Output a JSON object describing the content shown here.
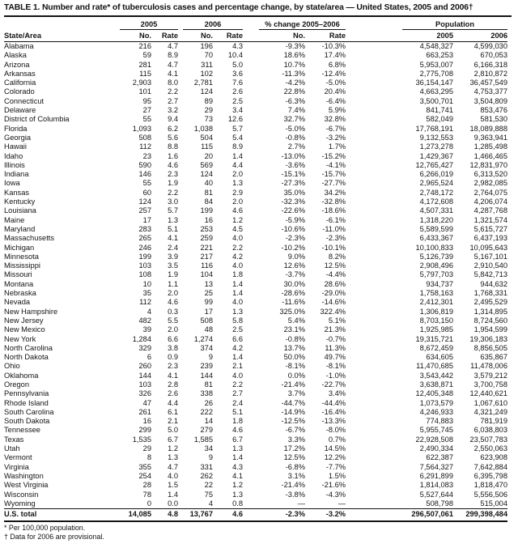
{
  "title": "TABLE 1. Number and rate* of tuberculosis cases and percentage change, by state/area — United States, 2005 and 2006†",
  "table": {
    "state_col_header": "State/Area",
    "groups": [
      "2005",
      "2006",
      "% change 2005–2006",
      "Population"
    ],
    "subheaders": [
      "No.",
      "Rate",
      "No.",
      "Rate",
      "No.",
      "Rate",
      "2005",
      "2006"
    ],
    "rows": [
      [
        "Alabama",
        "216",
        "4.7",
        "196",
        "4.3",
        "-9.3%",
        "-10.3%",
        "4,548,327",
        "4,599,030"
      ],
      [
        "Alaska",
        "59",
        "8.9",
        "70",
        "10.4",
        "18.6%",
        "17.4%",
        "663,253",
        "670,053"
      ],
      [
        "Arizona",
        "281",
        "4.7",
        "311",
        "5.0",
        "10.7%",
        "6.8%",
        "5,953,007",
        "6,166,318"
      ],
      [
        "Arkansas",
        "115",
        "4.1",
        "102",
        "3.6",
        "-11.3%",
        "-12.4%",
        "2,775,708",
        "2,810,872"
      ],
      [
        "California",
        "2,903",
        "8.0",
        "2,781",
        "7.6",
        "-4.2%",
        "-5.0%",
        "36,154,147",
        "36,457,549"
      ],
      [
        "Colorado",
        "101",
        "2.2",
        "124",
        "2.6",
        "22.8%",
        "20.4%",
        "4,663,295",
        "4,753,377"
      ],
      [
        "Connecticut",
        "95",
        "2.7",
        "89",
        "2.5",
        "-6.3%",
        "-6.4%",
        "3,500,701",
        "3,504,809"
      ],
      [
        "Delaware",
        "27",
        "3.2",
        "29",
        "3.4",
        "7.4%",
        "5.9%",
        "841,741",
        "853,476"
      ],
      [
        "District of Columbia",
        "55",
        "9.4",
        "73",
        "12.6",
        "32.7%",
        "32.8%",
        "582,049",
        "581,530"
      ],
      [
        "Florida",
        "1,093",
        "6.2",
        "1,038",
        "5.7",
        "-5.0%",
        "-6.7%",
        "17,768,191",
        "18,089,888"
      ],
      [
        "Georgia",
        "508",
        "5.6",
        "504",
        "5.4",
        "-0.8%",
        "-3.2%",
        "9,132,553",
        "9,363,941"
      ],
      [
        "Hawaii",
        "112",
        "8.8",
        "115",
        "8.9",
        "2.7%",
        "1.7%",
        "1,273,278",
        "1,285,498"
      ],
      [
        "Idaho",
        "23",
        "1.6",
        "20",
        "1.4",
        "-13.0%",
        "-15.2%",
        "1,429,367",
        "1,466,465"
      ],
      [
        "Illinois",
        "590",
        "4.6",
        "569",
        "4.4",
        "-3.6%",
        "-4.1%",
        "12,765,427",
        "12,831,970"
      ],
      [
        "Indiana",
        "146",
        "2.3",
        "124",
        "2.0",
        "-15.1%",
        "-15.7%",
        "6,266,019",
        "6,313,520"
      ],
      [
        "Iowa",
        "55",
        "1.9",
        "40",
        "1.3",
        "-27.3%",
        "-27.7%",
        "2,965,524",
        "2,982,085"
      ],
      [
        "Kansas",
        "60",
        "2.2",
        "81",
        "2.9",
        "35.0%",
        "34.2%",
        "2,748,172",
        "2,764,075"
      ],
      [
        "Kentucky",
        "124",
        "3.0",
        "84",
        "2.0",
        "-32.3%",
        "-32.8%",
        "4,172,608",
        "4,206,074"
      ],
      [
        "Louisiana",
        "257",
        "5.7",
        "199",
        "4.6",
        "-22.6%",
        "-18.6%",
        "4,507,331",
        "4,287,768"
      ],
      [
        "Maine",
        "17",
        "1.3",
        "16",
        "1.2",
        "-5.9%",
        "-6.1%",
        "1,318,220",
        "1,321,574"
      ],
      [
        "Maryland",
        "283",
        "5.1",
        "253",
        "4.5",
        "-10.6%",
        "-11.0%",
        "5,589,599",
        "5,615,727"
      ],
      [
        "Massachusetts",
        "265",
        "4.1",
        "259",
        "4.0",
        "-2.3%",
        "-2.3%",
        "6,433,367",
        "6,437,193"
      ],
      [
        "Michigan",
        "246",
        "2.4",
        "221",
        "2.2",
        "-10.2%",
        "-10.1%",
        "10,100,833",
        "10,095,643"
      ],
      [
        "Minnesota",
        "199",
        "3.9",
        "217",
        "4.2",
        "9.0%",
        "8.2%",
        "5,126,739",
        "5,167,101"
      ],
      [
        "Mississippi",
        "103",
        "3.5",
        "116",
        "4.0",
        "12.6%",
        "12.5%",
        "2,908,496",
        "2,910,540"
      ],
      [
        "Missouri",
        "108",
        "1.9",
        "104",
        "1.8",
        "-3.7%",
        "-4.4%",
        "5,797,703",
        "5,842,713"
      ],
      [
        "Montana",
        "10",
        "1.1",
        "13",
        "1.4",
        "30.0%",
        "28.6%",
        "934,737",
        "944,632"
      ],
      [
        "Nebraska",
        "35",
        "2.0",
        "25",
        "1.4",
        "-28.6%",
        "-29.0%",
        "1,758,163",
        "1,768,331"
      ],
      [
        "Nevada",
        "112",
        "4.6",
        "99",
        "4.0",
        "-11.6%",
        "-14.6%",
        "2,412,301",
        "2,495,529"
      ],
      [
        "New Hampshire",
        "4",
        "0.3",
        "17",
        "1.3",
        "325.0%",
        "322.4%",
        "1,306,819",
        "1,314,895"
      ],
      [
        "New Jersey",
        "482",
        "5.5",
        "508",
        "5.8",
        "5.4%",
        "5.1%",
        "8,703,150",
        "8,724,560"
      ],
      [
        "New Mexico",
        "39",
        "2.0",
        "48",
        "2.5",
        "23.1%",
        "21.3%",
        "1,925,985",
        "1,954,599"
      ],
      [
        "New York",
        "1,284",
        "6.6",
        "1,274",
        "6.6",
        "-0.8%",
        "-0.7%",
        "19,315,721",
        "19,306,183"
      ],
      [
        "North Carolina",
        "329",
        "3.8",
        "374",
        "4.2",
        "13.7%",
        "11.3%",
        "8,672,459",
        "8,856,505"
      ],
      [
        "North Dakota",
        "6",
        "0.9",
        "9",
        "1.4",
        "50.0%",
        "49.7%",
        "634,605",
        "635,867"
      ],
      [
        "Ohio",
        "260",
        "2.3",
        "239",
        "2.1",
        "-8.1%",
        "-8.1%",
        "11,470,685",
        "11,478,006"
      ],
      [
        "Oklahoma",
        "144",
        "4.1",
        "144",
        "4.0",
        "0.0%",
        "-1.0%",
        "3,543,442",
        "3,579,212"
      ],
      [
        "Oregon",
        "103",
        "2.8",
        "81",
        "2.2",
        "-21.4%",
        "-22.7%",
        "3,638,871",
        "3,700,758"
      ],
      [
        "Pennsylvania",
        "326",
        "2.6",
        "338",
        "2.7",
        "3.7%",
        "3.4%",
        "12,405,348",
        "12,440,621"
      ],
      [
        "Rhode Island",
        "47",
        "4.4",
        "26",
        "2.4",
        "-44.7%",
        "-44.4%",
        "1,073,579",
        "1,067,610"
      ],
      [
        "South Carolina",
        "261",
        "6.1",
        "222",
        "5.1",
        "-14.9%",
        "-16.4%",
        "4,246,933",
        "4,321,249"
      ],
      [
        "South Dakota",
        "16",
        "2.1",
        "14",
        "1.8",
        "-12.5%",
        "-13.3%",
        "774,883",
        "781,919"
      ],
      [
        "Tennessee",
        "299",
        "5.0",
        "279",
        "4.6",
        "-6.7%",
        "-8.0%",
        "5,955,745",
        "6,038,803"
      ],
      [
        "Texas",
        "1,535",
        "6.7",
        "1,585",
        "6.7",
        "3.3%",
        "0.7%",
        "22,928,508",
        "23,507,783"
      ],
      [
        "Utah",
        "29",
        "1.2",
        "34",
        "1.3",
        "17.2%",
        "14.5%",
        "2,490,334",
        "2,550,063"
      ],
      [
        "Vermont",
        "8",
        "1.3",
        "9",
        "1.4",
        "12.5%",
        "12.2%",
        "622,387",
        "623,908"
      ],
      [
        "Virginia",
        "355",
        "4.7",
        "331",
        "4.3",
        "-6.8%",
        "-7.7%",
        "7,564,327",
        "7,642,884"
      ],
      [
        "Washington",
        "254",
        "4.0",
        "262",
        "4.1",
        "3.1%",
        "1.5%",
        "6,291,899",
        "6,395,798"
      ],
      [
        "West Virginia",
        "28",
        "1.5",
        "22",
        "1.2",
        "-21.4%",
        "-21.6%",
        "1,814,083",
        "1,818,470"
      ],
      [
        "Wisconsin",
        "78",
        "1.4",
        "75",
        "1.3",
        "-3.8%",
        "-4.3%",
        "5,527,644",
        "5,556,506"
      ],
      [
        "Wyoming",
        "0",
        "0.0",
        "4",
        "0.8",
        "—",
        "—",
        "508,798",
        "515,004"
      ]
    ],
    "total_row": [
      "U.S. total",
      "14,085",
      "4.8",
      "13,767",
      "4.6",
      "-2.3%",
      "-3.2%",
      "296,507,061",
      "299,398,484"
    ]
  },
  "footnotes": [
    "* Per 100,000 population.",
    "† Data for 2006 are provisional."
  ]
}
